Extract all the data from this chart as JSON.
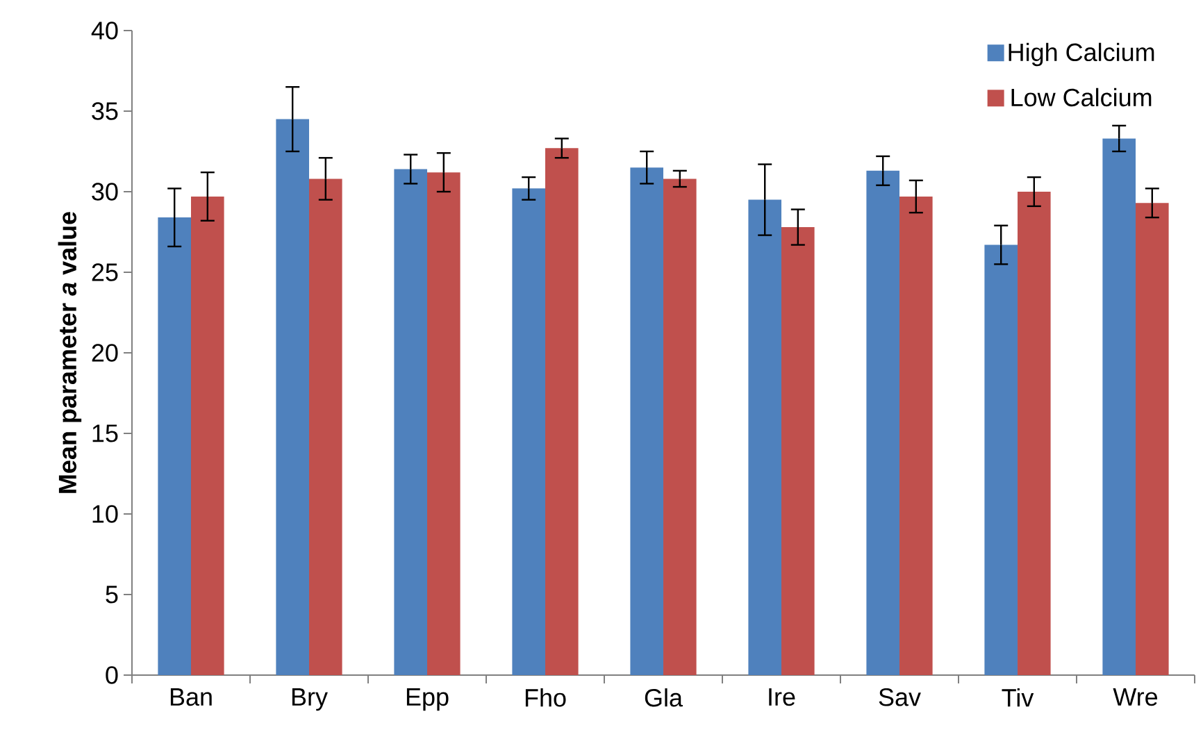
{
  "chart_data": {
    "type": "bar",
    "ylabel": "Mean parameter *a* value",
    "categories": [
      "Ban",
      "Bry",
      "Epp",
      "Fho",
      "Gla",
      "Ire",
      "Sav",
      "Tiv",
      "Wre"
    ],
    "series": [
      {
        "name": "High Calcium",
        "color": "#4f81bd",
        "values": [
          28.4,
          34.5,
          31.4,
          30.2,
          31.5,
          29.5,
          31.3,
          26.7,
          33.3
        ],
        "errors": [
          1.8,
          2.0,
          0.9,
          0.7,
          1.0,
          2.2,
          0.9,
          1.2,
          0.8
        ]
      },
      {
        "name": "Low Calcium",
        "color": "#c0504d",
        "values": [
          29.7,
          30.8,
          31.2,
          32.7,
          30.8,
          27.8,
          29.7,
          30.0,
          29.3
        ],
        "errors": [
          1.5,
          1.3,
          1.2,
          0.6,
          0.5,
          1.1,
          1.0,
          0.9,
          0.9
        ]
      }
    ],
    "ylim": [
      0,
      40
    ],
    "yticks": [
      0,
      5,
      10,
      15,
      20,
      25,
      30,
      35,
      40
    ],
    "grid": false,
    "legend": "top right"
  }
}
